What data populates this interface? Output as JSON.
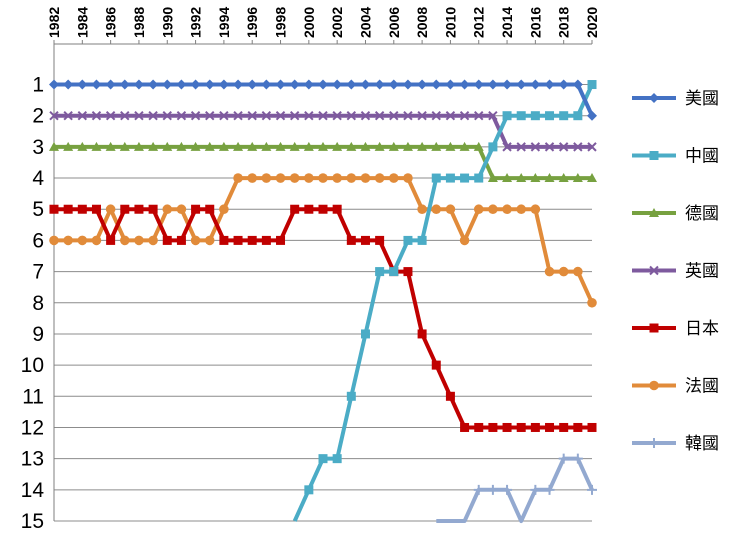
{
  "chart_data": {
    "type": "line",
    "title": "",
    "xlabel": "",
    "ylabel": "",
    "ylim": [
      1,
      15
    ],
    "y_inverted": true,
    "grid": true,
    "legend_position": "right",
    "x": [
      1982,
      1983,
      1984,
      1985,
      1986,
      1987,
      1988,
      1989,
      1990,
      1991,
      1992,
      1993,
      1994,
      1995,
      1996,
      1997,
      1998,
      1999,
      2000,
      2001,
      2002,
      2003,
      2004,
      2005,
      2006,
      2007,
      2008,
      2009,
      2010,
      2011,
      2012,
      2013,
      2014,
      2015,
      2016,
      2017,
      2018,
      2019,
      2020
    ],
    "x_tick_labels": [
      "1982",
      "1984",
      "1986",
      "1988",
      "1990",
      "1992",
      "1994",
      "1996",
      "1998",
      "2000",
      "2002",
      "2004",
      "2006",
      "2008",
      "2010",
      "2012",
      "2014",
      "2016",
      "2018",
      "2020"
    ],
    "y_tick_labels": [
      "1",
      "2",
      "3",
      "4",
      "5",
      "6",
      "7",
      "8",
      "9",
      "10",
      "11",
      "12",
      "13",
      "14",
      "15"
    ],
    "series": [
      {
        "name": "美國",
        "color": "#4472C4",
        "marker": "diamond",
        "values": [
          1,
          1,
          1,
          1,
          1,
          1,
          1,
          1,
          1,
          1,
          1,
          1,
          1,
          1,
          1,
          1,
          1,
          1,
          1,
          1,
          1,
          1,
          1,
          1,
          1,
          1,
          1,
          1,
          1,
          1,
          1,
          1,
          1,
          1,
          1,
          1,
          1,
          1,
          2
        ]
      },
      {
        "name": "中國",
        "color": "#4BACC6",
        "marker": "square",
        "values": [
          null,
          null,
          null,
          null,
          null,
          null,
          null,
          null,
          null,
          null,
          null,
          null,
          null,
          null,
          null,
          null,
          null,
          15,
          14,
          13,
          13,
          11,
          9,
          7,
          7,
          6,
          6,
          4,
          4,
          4,
          4,
          3,
          2,
          2,
          2,
          2,
          2,
          2,
          1
        ]
      },
      {
        "name": "德國",
        "color": "#77A140",
        "marker": "triangle",
        "values": [
          3,
          3,
          3,
          3,
          3,
          3,
          3,
          3,
          3,
          3,
          3,
          3,
          3,
          3,
          3,
          3,
          3,
          3,
          3,
          3,
          3,
          3,
          3,
          3,
          3,
          3,
          3,
          3,
          3,
          3,
          3,
          4,
          4,
          4,
          4,
          4,
          4,
          4,
          4
        ]
      },
      {
        "name": "英國",
        "color": "#7E5A9E",
        "marker": "x",
        "values": [
          2,
          2,
          2,
          2,
          2,
          2,
          2,
          2,
          2,
          2,
          2,
          2,
          2,
          2,
          2,
          2,
          2,
          2,
          2,
          2,
          2,
          2,
          2,
          2,
          2,
          2,
          2,
          2,
          2,
          2,
          2,
          2,
          3,
          3,
          3,
          3,
          3,
          3,
          3
        ]
      },
      {
        "name": "日本",
        "color": "#C00000",
        "marker": "square",
        "values": [
          5,
          5,
          5,
          5,
          6,
          5,
          5,
          5,
          6,
          6,
          5,
          5,
          6,
          6,
          6,
          6,
          6,
          5,
          5,
          5,
          5,
          6,
          6,
          6,
          7,
          7,
          9,
          10,
          11,
          12,
          12,
          12,
          12,
          12,
          12,
          12,
          12,
          12,
          12
        ]
      },
      {
        "name": "法國",
        "color": "#E18B3A",
        "marker": "circle",
        "values": [
          6,
          6,
          6,
          6,
          5,
          6,
          6,
          6,
          5,
          5,
          6,
          6,
          5,
          4,
          4,
          4,
          4,
          4,
          4,
          4,
          4,
          4,
          4,
          4,
          4,
          4,
          5,
          5,
          5,
          6,
          5,
          5,
          5,
          5,
          5,
          7,
          7,
          7,
          8
        ]
      },
      {
        "name": "韓國",
        "color": "#93A9D0",
        "marker": "plus",
        "values": [
          null,
          null,
          null,
          null,
          null,
          null,
          null,
          null,
          null,
          null,
          null,
          null,
          null,
          null,
          null,
          null,
          null,
          null,
          null,
          null,
          null,
          null,
          null,
          null,
          null,
          null,
          null,
          15,
          15,
          15,
          14,
          14,
          14,
          15,
          14,
          14,
          13,
          13,
          14
        ]
      }
    ]
  }
}
